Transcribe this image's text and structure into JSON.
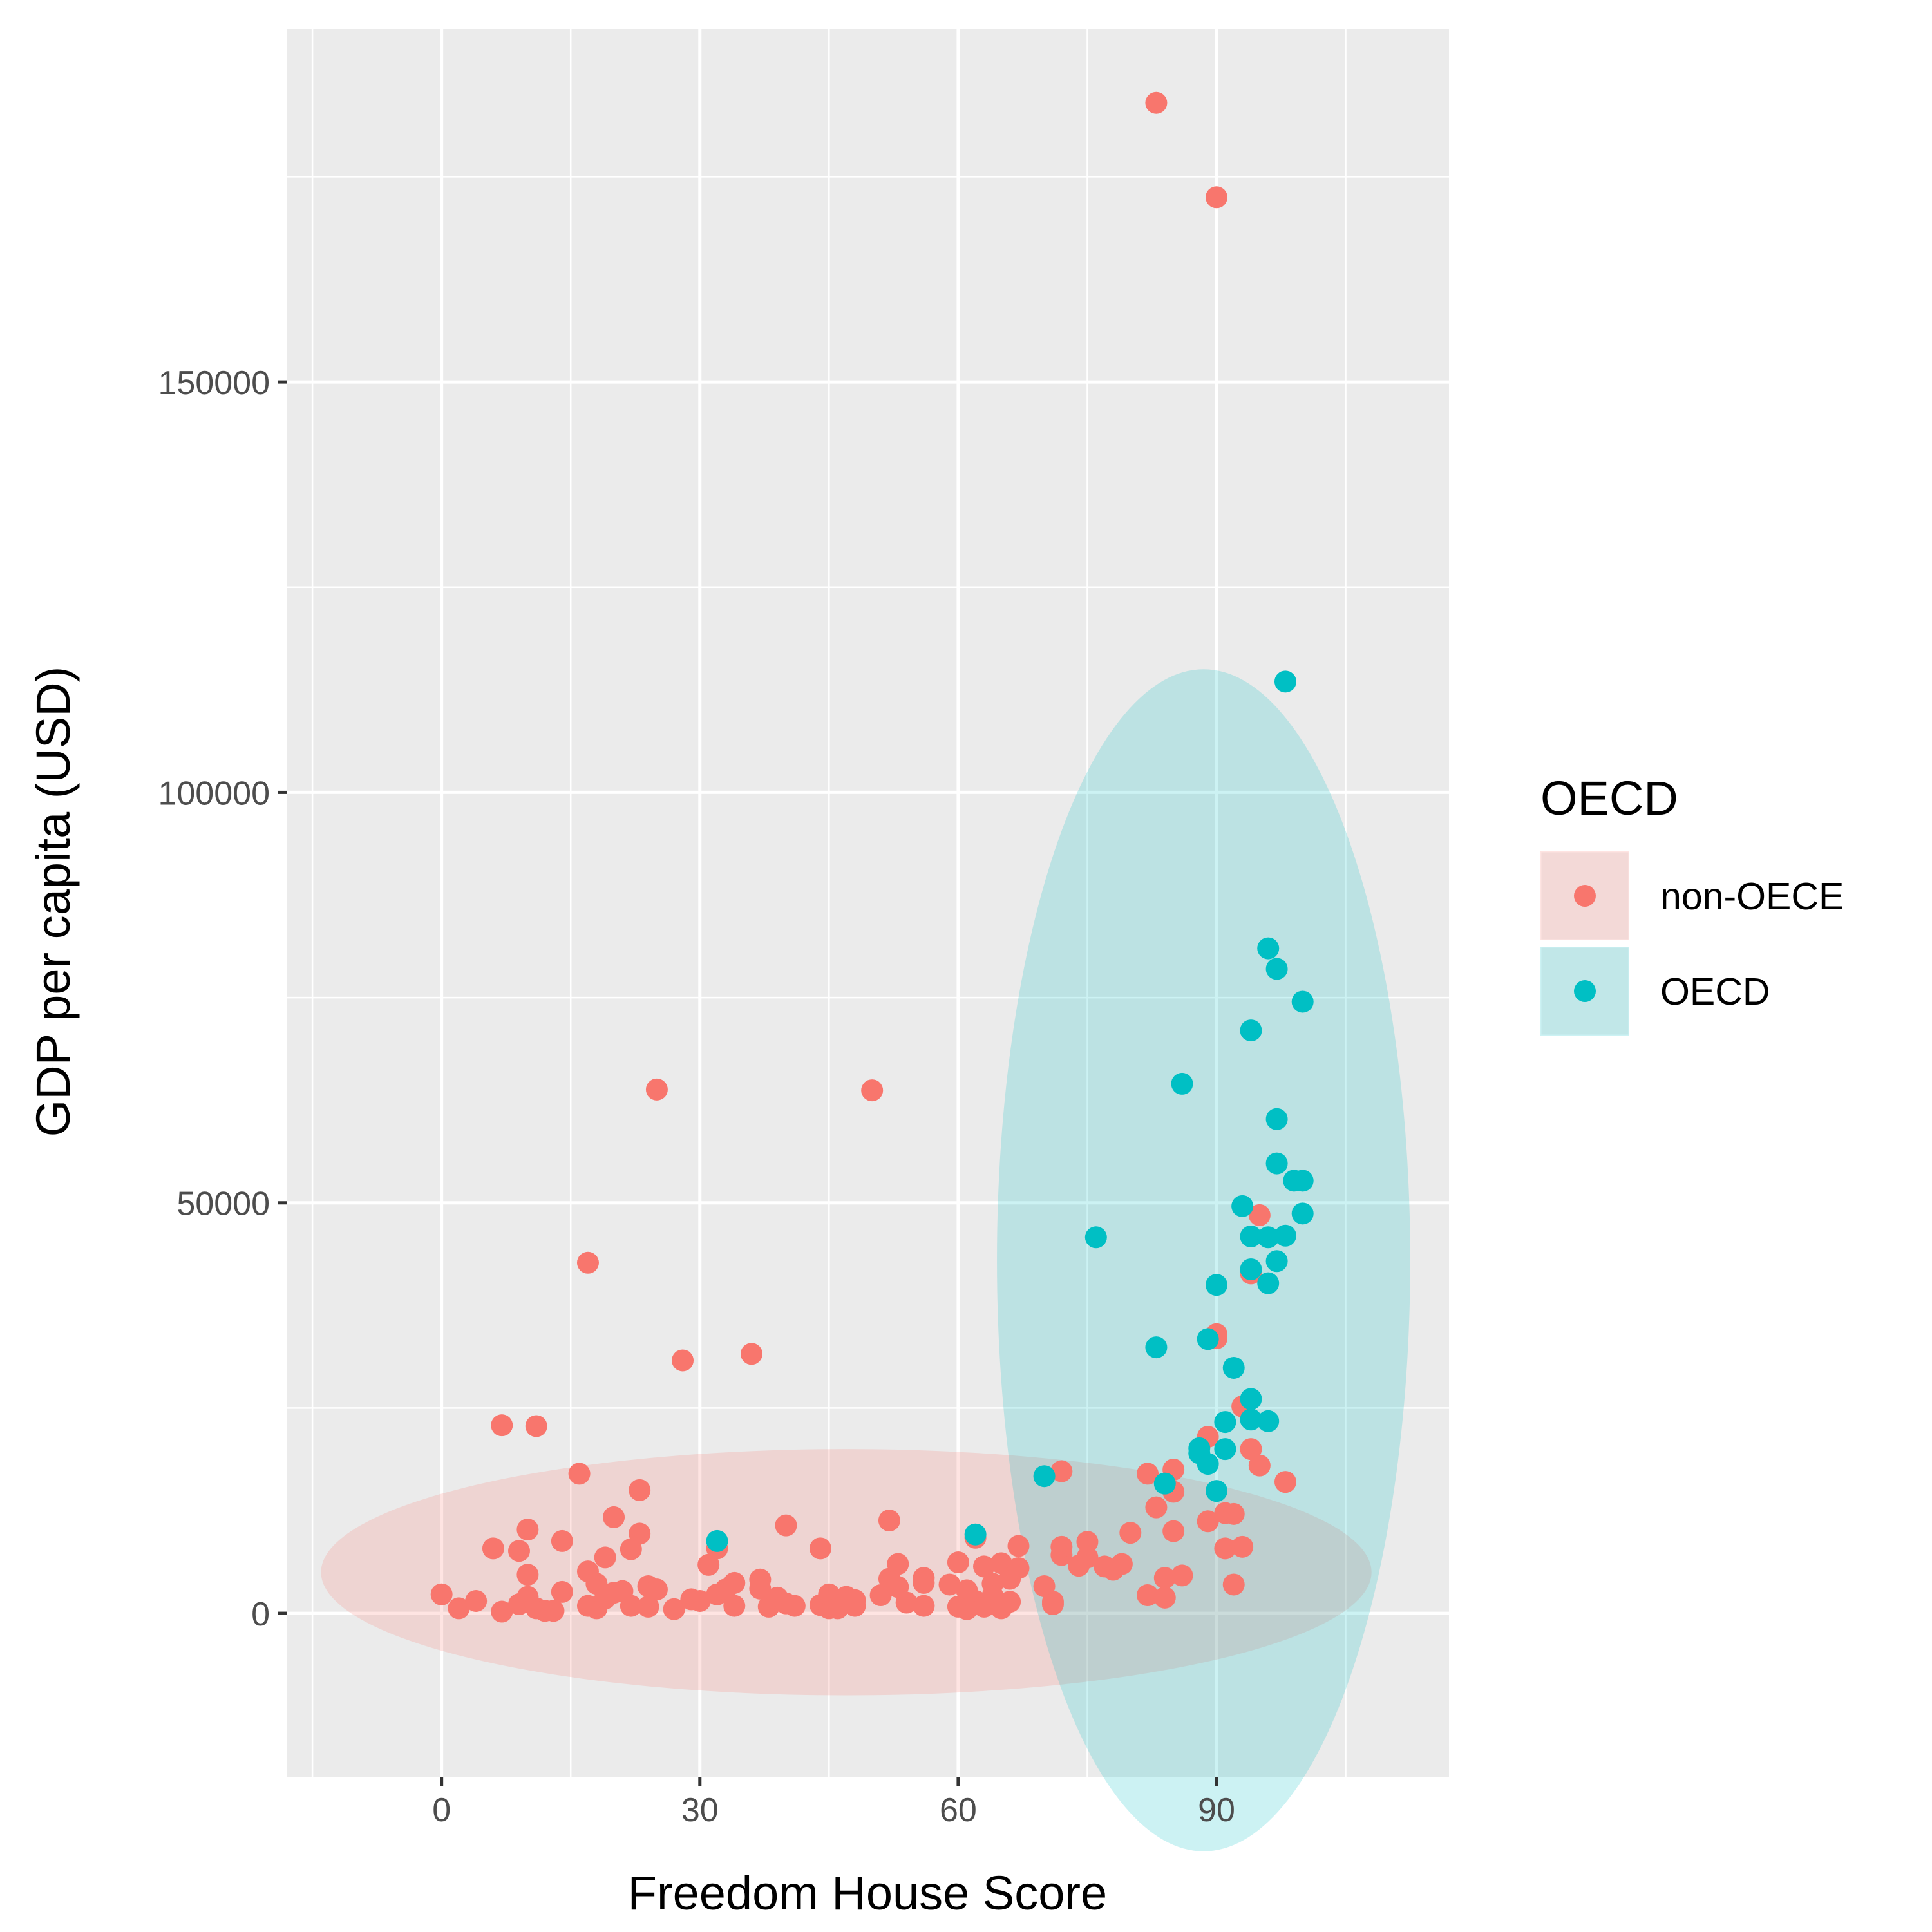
{
  "chart_data": {
    "type": "scatter",
    "title": "",
    "xlabel": "Freedom House Score",
    "ylabel": "GDP per capita (USD)",
    "xlim": [
      -18,
      117
    ],
    "ylim": [
      -20000,
      193000
    ],
    "x_ticks": [
      0,
      30,
      60,
      90
    ],
    "x_tick_labels": [
      "0",
      "30",
      "60",
      "90"
    ],
    "y_ticks": [
      0,
      50000,
      100000,
      150000
    ],
    "y_tick_labels": [
      "0",
      "50000",
      "100000",
      "150000"
    ],
    "grid": true,
    "legend": {
      "title": "OECD",
      "position": "right"
    },
    "series": [
      {
        "name": "non-OECE",
        "color": "#F8766D",
        "ellipse": {
          "cx": 47,
          "cy": 5000,
          "rx": 61,
          "ry": 15000,
          "angle_deg": 0
        },
        "points": [
          [
            83,
            184000
          ],
          [
            90,
            172500
          ],
          [
            25,
            63800
          ],
          [
            50,
            63700
          ],
          [
            17,
            42700
          ],
          [
            28,
            30800
          ],
          [
            36,
            31600
          ],
          [
            7,
            22900
          ],
          [
            11,
            22800
          ],
          [
            16,
            17000
          ],
          [
            23,
            15000
          ],
          [
            72,
            17300
          ],
          [
            20,
            11700
          ],
          [
            23,
            9700
          ],
          [
            22,
            7800
          ],
          [
            19,
            6800
          ],
          [
            14,
            8800
          ],
          [
            10,
            10200
          ],
          [
            6,
            7900
          ],
          [
            9,
            7600
          ],
          [
            40,
            10700
          ],
          [
            44,
            7900
          ],
          [
            52,
            11300
          ],
          [
            31,
            5900
          ],
          [
            32,
            7900
          ],
          [
            0,
            2300
          ],
          [
            2,
            600
          ],
          [
            4,
            1500
          ],
          [
            7,
            200
          ],
          [
            9,
            1100
          ],
          [
            10,
            2000
          ],
          [
            10,
            4700
          ],
          [
            11,
            600
          ],
          [
            12,
            300
          ],
          [
            13,
            300
          ],
          [
            14,
            2600
          ],
          [
            17,
            900
          ],
          [
            17,
            5100
          ],
          [
            18,
            600
          ],
          [
            18,
            3600
          ],
          [
            19,
            1800
          ],
          [
            20,
            2500
          ],
          [
            21,
            2700
          ],
          [
            22,
            900
          ],
          [
            24,
            800
          ],
          [
            24,
            3300
          ],
          [
            25,
            2900
          ],
          [
            27,
            500
          ],
          [
            29,
            1700
          ],
          [
            30,
            1500
          ],
          [
            32,
            2300
          ],
          [
            33,
            2900
          ],
          [
            34,
            900
          ],
          [
            34,
            3700
          ],
          [
            37,
            4100
          ],
          [
            37,
            3000
          ],
          [
            38,
            800
          ],
          [
            39,
            1900
          ],
          [
            40,
            1200
          ],
          [
            41,
            900
          ],
          [
            44,
            1000
          ],
          [
            45,
            600
          ],
          [
            45,
            2300
          ],
          [
            46,
            600
          ],
          [
            47,
            2000
          ],
          [
            48,
            900
          ],
          [
            48,
            1600
          ],
          [
            51,
            2200
          ],
          [
            52,
            4200
          ],
          [
            53,
            6000
          ],
          [
            53,
            3200
          ],
          [
            54,
            1300
          ],
          [
            56,
            900
          ],
          [
            56,
            4300
          ],
          [
            56,
            3700
          ],
          [
            59,
            3500
          ],
          [
            60,
            6200
          ],
          [
            60,
            800
          ],
          [
            61,
            2800
          ],
          [
            61,
            500
          ],
          [
            62,
            9200
          ],
          [
            62,
            1500
          ],
          [
            63,
            800
          ],
          [
            63,
            5700
          ],
          [
            64,
            3600
          ],
          [
            64,
            2100
          ],
          [
            65,
            600
          ],
          [
            65,
            6100
          ],
          [
            66,
            1400
          ],
          [
            66,
            4200
          ],
          [
            67,
            5500
          ],
          [
            67,
            8200
          ],
          [
            70,
            3300
          ],
          [
            71,
            1400
          ],
          [
            71,
            1100
          ],
          [
            72,
            7100
          ],
          [
            72,
            8100
          ],
          [
            74,
            5800
          ],
          [
            75,
            8700
          ],
          [
            75,
            6800
          ],
          [
            77,
            5700
          ],
          [
            78,
            5300
          ],
          [
            79,
            6000
          ],
          [
            80,
            9800
          ],
          [
            82,
            17000
          ],
          [
            82,
            2200
          ],
          [
            83,
            12900
          ],
          [
            84,
            4300
          ],
          [
            84,
            1900
          ],
          [
            85,
            17500
          ],
          [
            85,
            14800
          ],
          [
            85,
            10000
          ],
          [
            86,
            4600
          ],
          [
            89,
            21500
          ],
          [
            89,
            11200
          ],
          [
            90,
            34000
          ],
          [
            90,
            33500
          ],
          [
            91,
            7900
          ],
          [
            91,
            12200
          ],
          [
            92,
            12100
          ],
          [
            92,
            3500
          ],
          [
            93,
            25200
          ],
          [
            93,
            8100
          ],
          [
            94,
            41400
          ],
          [
            94,
            20000
          ],
          [
            95,
            48500
          ],
          [
            95,
            18000
          ],
          [
            98,
            16000
          ]
        ]
      },
      {
        "name": "OECD",
        "color": "#00BFC4",
        "ellipse": {
          "cx": 88.5,
          "cy": 43000,
          "rx": 24,
          "ry": 72000,
          "angle_deg": 0
        },
        "points": [
          [
            98,
            113500
          ],
          [
            96,
            81000
          ],
          [
            97,
            78500
          ],
          [
            100,
            74500
          ],
          [
            94,
            71000
          ],
          [
            86,
            64500
          ],
          [
            97,
            60200
          ],
          [
            97,
            54800
          ],
          [
            99,
            52700
          ],
          [
            100,
            52700
          ],
          [
            93,
            49600
          ],
          [
            100,
            48700
          ],
          [
            76,
            45800
          ],
          [
            94,
            45900
          ],
          [
            96,
            45800
          ],
          [
            98,
            46000
          ],
          [
            97,
            42900
          ],
          [
            94,
            41900
          ],
          [
            90,
            40000
          ],
          [
            96,
            40200
          ],
          [
            89,
            33400
          ],
          [
            83,
            32400
          ],
          [
            92,
            29900
          ],
          [
            94,
            26100
          ],
          [
            91,
            23300
          ],
          [
            96,
            23400
          ],
          [
            94,
            23600
          ],
          [
            88,
            20100
          ],
          [
            91,
            20000
          ],
          [
            88,
            19500
          ],
          [
            89,
            18200
          ],
          [
            70,
            16700
          ],
          [
            84,
            15800
          ],
          [
            90,
            14900
          ],
          [
            32,
            8800
          ],
          [
            62,
            9600
          ]
        ]
      }
    ]
  }
}
